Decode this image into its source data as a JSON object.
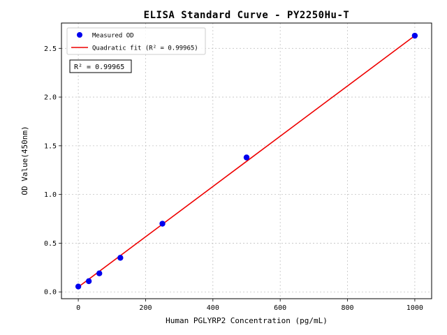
{
  "chart_data": {
    "type": "scatter",
    "title": "ELISA Standard Curve - PY2250Hu-T",
    "xlabel": "Human PGLYRP2 Concentration (pg/mL)",
    "ylabel": "OD Value(450nm)",
    "xlim": [
      -50,
      1050
    ],
    "ylim": [
      -0.07,
      2.76
    ],
    "xticks": [
      0,
      200,
      400,
      600,
      800,
      1000
    ],
    "yticks": [
      0.0,
      0.5,
      1.0,
      1.5,
      2.0,
      2.5
    ],
    "grid": true,
    "legend_position": "upper left",
    "annotation": "R² = 0.99965",
    "series": [
      {
        "name": "Measured OD",
        "type": "scatter",
        "color": "#0000ee",
        "x": [
          0,
          31.25,
          62.5,
          125,
          250,
          500,
          1000
        ],
        "y": [
          0.055,
          0.11,
          0.19,
          0.35,
          0.7,
          1.38,
          2.63
        ]
      },
      {
        "name": "Quadratic fit (R² = 0.99965)",
        "type": "line",
        "color": "#ee0000",
        "x": [
          0,
          250,
          500,
          750,
          1000
        ],
        "y": [
          0.05,
          0.695,
          1.34,
          1.985,
          2.63
        ]
      }
    ]
  }
}
